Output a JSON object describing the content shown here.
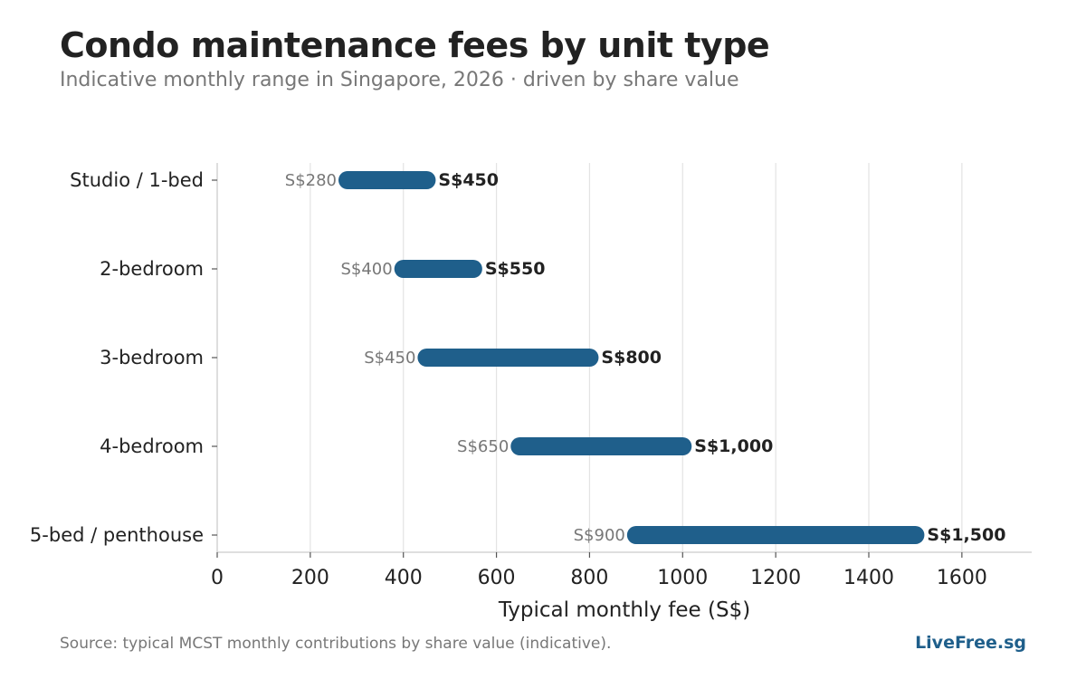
{
  "header": {
    "title": "Condo maintenance fees by unit type",
    "subtitle": "Indicative monthly range in Singapore, 2026 · driven by share value"
  },
  "footer": {
    "source": "Source: typical MCST monthly contributions by share value (indicative).",
    "brand": "LiveFree.sg"
  },
  "colors": {
    "bar": "#1f5f8b",
    "grid": "#e3e3e3",
    "axis": "#cccccc",
    "text": "#222222",
    "muted": "#777777",
    "brand": "#1f5f8b"
  },
  "chart_data": {
    "type": "range-bar",
    "categories": [
      "Studio / 1-bed",
      "2-bedroom",
      "3-bedroom",
      "4-bedroom",
      "5-bed / penthouse"
    ],
    "series": [
      {
        "low": [
          280,
          400,
          450,
          650,
          900
        ],
        "high": [
          450,
          550,
          800,
          1000,
          1500
        ]
      }
    ],
    "low_labels": [
      "S$280",
      "S$400",
      "S$450",
      "S$650",
      "S$900"
    ],
    "high_labels": [
      "S$450",
      "S$550",
      "S$800",
      "S$1,000",
      "S$1,500"
    ],
    "xlabel": "Typical monthly fee (S$)",
    "xlim": [
      0,
      1750
    ],
    "xticks": [
      0,
      200,
      400,
      600,
      800,
      1000,
      1200,
      1400,
      1600
    ],
    "grid": "vertical",
    "legend": "none"
  }
}
